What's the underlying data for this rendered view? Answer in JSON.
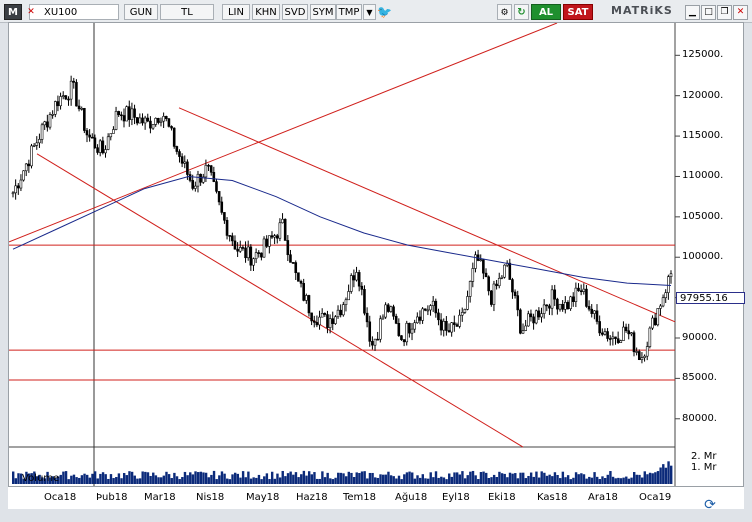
{
  "toolbar": {
    "menu_label": "M",
    "symbol": "XU100",
    "period": "GUN",
    "currency": "TL",
    "scale": "LIN",
    "btn_khn": "KHN",
    "btn_svd": "SVD",
    "btn_sym": "SYM",
    "btn_tmp": "TMP",
    "buy_label": "AL",
    "sell_label": "SAT",
    "logo": "MATRiKS"
  },
  "price_axis": {
    "ticks": [
      "125000.",
      "120000.",
      "115000.",
      "110000.",
      "105000.",
      "100000.",
      "95000.",
      "90000.",
      "85000.",
      "80000."
    ],
    "last_price": "97955.16"
  },
  "volume_panel": {
    "label": "Volume",
    "ticks": [
      "2. Mr",
      "1. Mr"
    ]
  },
  "time_axis": {
    "labels": [
      "Oca18",
      "Þub18",
      "Mar18",
      "Nis18",
      "May18",
      "Haz18",
      "Tem18",
      "Ağu18",
      "Eyl18",
      "Eki18",
      "Kas18",
      "Ara18",
      "Oca19"
    ]
  },
  "colors": {
    "candles": "#000000",
    "moving_average": "#1a2a8c",
    "trend_lines": "#d0201c",
    "volume": "#0b2a7a"
  },
  "chart_data": {
    "type": "candlestick",
    "symbol": "XU100",
    "ylim": [
      77000,
      129000
    ],
    "x_months": [
      "Oca18",
      "Þub18",
      "Mar18",
      "Nis18",
      "May18",
      "Haz18",
      "Tem18",
      "Ağu18",
      "Eyl18",
      "Eki18",
      "Kas18",
      "Ara18",
      "Oca19"
    ],
    "close_path": [
      108000,
      112000,
      116000,
      119500,
      121000,
      115000,
      113000,
      118000,
      117500,
      116500,
      118000,
      113000,
      109000,
      111000,
      105000,
      101000,
      100000,
      101500,
      104000,
      97000,
      93000,
      92000,
      94000,
      99000,
      89000,
      94000,
      90000,
      93000,
      94000,
      90500,
      92000,
      100000,
      95000,
      99000,
      91000,
      93000,
      95000,
      94000,
      96000,
      92000,
      90000,
      91000,
      87500,
      93000,
      97955
    ],
    "horizontal_levels": [
      101500,
      88500,
      84800
    ],
    "moving_average": [
      101000,
      103500,
      106000,
      108500,
      110000,
      109500,
      107500,
      105000,
      103000,
      101500,
      100500,
      99500,
      98500,
      97500,
      96800,
      96500
    ],
    "volume_ticks": [
      "2. Mr",
      "1. Mr"
    ]
  }
}
